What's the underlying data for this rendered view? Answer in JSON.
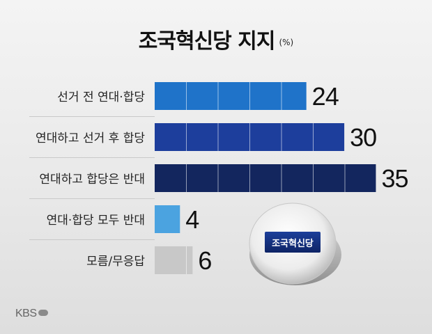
{
  "title": "조국혁신당 지지",
  "unit": "(%)",
  "logo_text": "조국혁신당",
  "broadcaster": "KBS",
  "chart_data": {
    "type": "bar",
    "orientation": "horizontal",
    "title": "조국혁신당 지지",
    "unit": "%",
    "categories": [
      "선거 전 연대·합당",
      "연대하고 선거 후 합당",
      "연대하고 합당은 반대",
      "연대·합당 모두 반대",
      "모름/무응답"
    ],
    "values": [
      24,
      30,
      35,
      4,
      6
    ],
    "value_labels": [
      "24",
      "30",
      "35",
      "4",
      "6"
    ],
    "colors": [
      "#1f73c9",
      "#1d3e9c",
      "#13265e",
      "#4ba3e0",
      "#c8c8c8"
    ],
    "xlim": [
      0,
      35
    ],
    "grid": false,
    "legend": "none"
  }
}
